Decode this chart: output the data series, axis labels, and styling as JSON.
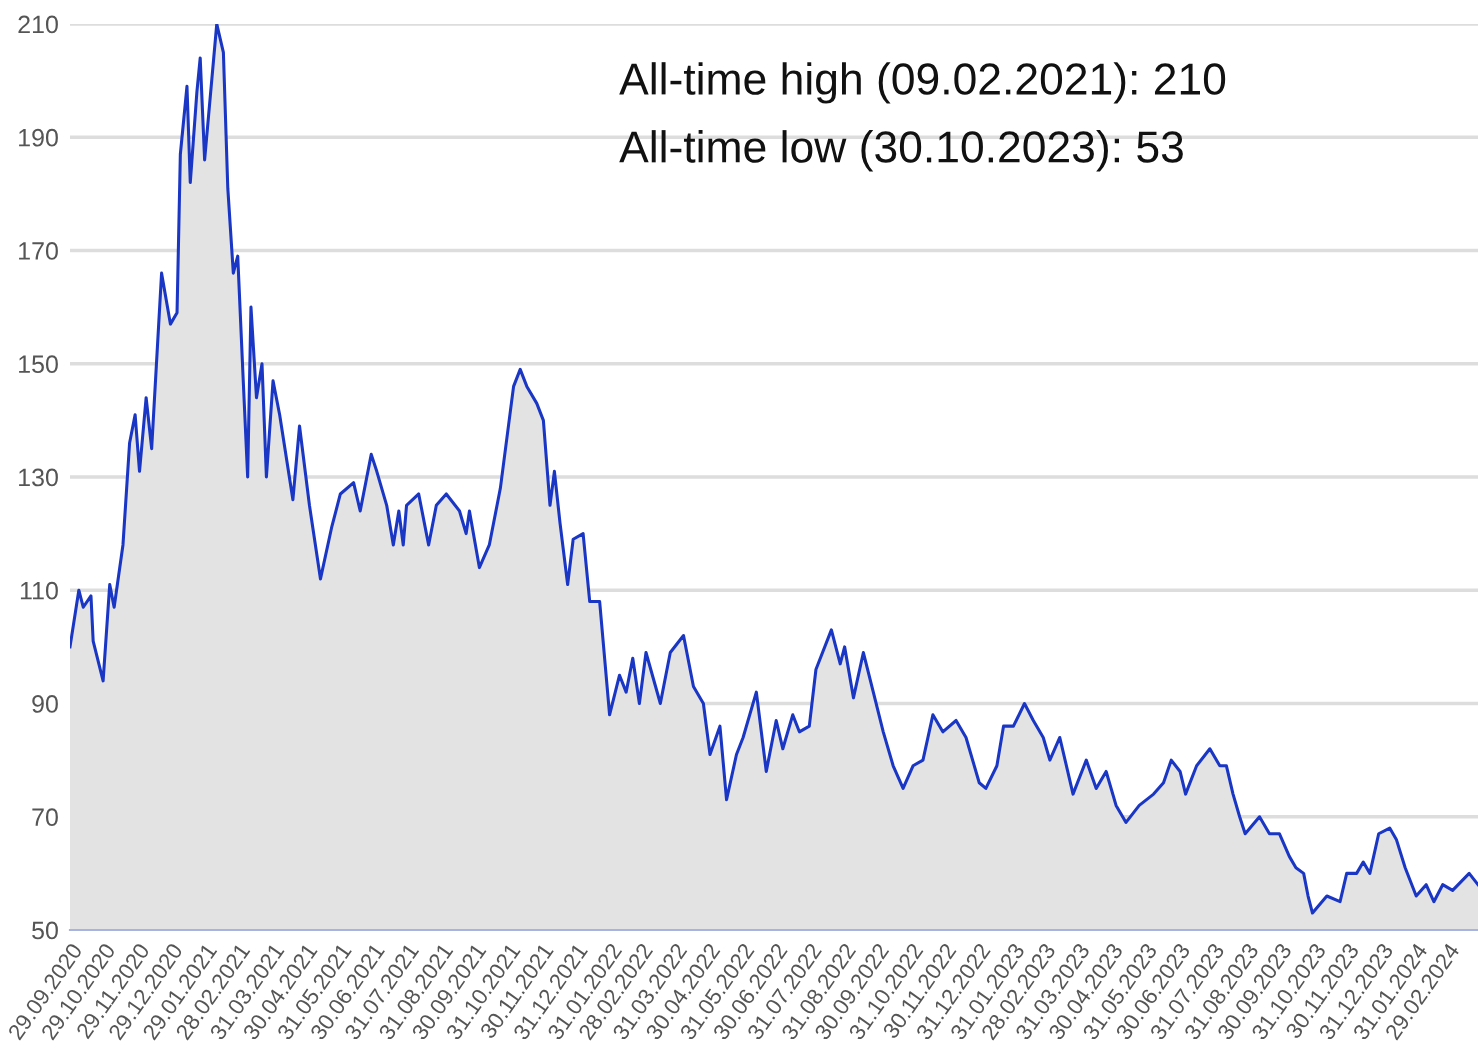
{
  "chart_data": {
    "type": "area",
    "series": [
      {
        "color": "#1a36c4",
        "x": [
          "2020-09-29",
          "2020-10-07",
          "2020-10-11",
          "2020-10-18",
          "2020-10-20",
          "2020-10-29",
          "2020-11-04",
          "2020-11-08",
          "2020-11-16",
          "2020-11-22",
          "2020-11-27",
          "2020-12-01",
          "2020-12-07",
          "2020-12-12",
          "2020-12-21",
          "2020-12-29",
          "2021-01-04",
          "2021-01-07",
          "2021-01-13",
          "2021-01-16",
          "2021-01-22",
          "2021-01-25",
          "2021-01-29",
          "2021-02-09",
          "2021-02-15",
          "2021-02-19",
          "2021-02-24",
          "2021-02-28",
          "2021-03-05",
          "2021-03-09",
          "2021-03-12",
          "2021-03-17",
          "2021-03-22",
          "2021-03-26",
          "2021-04-01",
          "2021-04-07",
          "2021-04-19",
          "2021-04-25",
          "2021-05-04",
          "2021-05-14",
          "2021-05-24",
          "2021-06-01",
          "2021-06-13",
          "2021-06-19",
          "2021-06-29",
          "2021-07-04",
          "2021-07-13",
          "2021-07-19",
          "2021-07-24",
          "2021-07-28",
          "2021-07-31",
          "2021-08-11",
          "2021-08-20",
          "2021-08-27",
          "2021-09-05",
          "2021-09-17",
          "2021-09-23",
          "2021-09-26",
          "2021-10-05",
          "2021-10-14",
          "2021-10-24",
          "2021-11-05",
          "2021-11-11",
          "2021-11-17",
          "2021-11-26",
          "2021-12-02",
          "2021-12-08",
          "2021-12-12",
          "2021-12-17",
          "2021-12-24",
          "2021-12-29",
          "2022-01-07",
          "2022-01-13",
          "2022-01-22",
          "2022-01-31",
          "2022-02-09",
          "2022-02-15",
          "2022-02-21",
          "2022-02-27",
          "2022-03-05",
          "2022-03-18",
          "2022-03-27",
          "2022-04-08",
          "2022-04-17",
          "2022-04-26",
          "2022-05-02",
          "2022-05-11",
          "2022-05-17",
          "2022-05-26",
          "2022-06-01",
          "2022-06-13",
          "2022-06-22",
          "2022-07-01",
          "2022-07-07",
          "2022-07-16",
          "2022-07-22",
          "2022-07-31",
          "2022-08-06",
          "2022-08-20",
          "2022-08-28",
          "2022-09-01",
          "2022-09-09",
          "2022-09-18",
          "2022-09-27",
          "2022-10-06",
          "2022-10-15",
          "2022-10-24",
          "2022-11-02",
          "2022-11-11",
          "2022-11-20",
          "2022-11-29",
          "2022-12-11",
          "2022-12-20",
          "2023-01-01",
          "2023-01-07",
          "2023-01-17",
          "2023-01-23",
          "2023-02-01",
          "2023-02-11",
          "2023-02-19",
          "2023-02-28",
          "2023-03-06",
          "2023-03-15",
          "2023-03-27",
          "2023-04-08",
          "2023-04-17",
          "2023-04-26",
          "2023-05-05",
          "2023-05-14",
          "2023-05-26",
          "2023-06-08",
          "2023-06-17",
          "2023-06-24",
          "2023-07-02",
          "2023-07-07",
          "2023-07-17",
          "2023-07-29",
          "2023-08-07",
          "2023-08-13",
          "2023-08-19",
          "2023-08-25",
          "2023-08-30",
          "2023-09-12",
          "2023-09-21",
          "2023-09-30",
          "2023-10-09",
          "2023-10-15",
          "2023-10-22",
          "2023-10-26",
          "2023-10-30",
          "2023-11-12",
          "2023-11-24",
          "2023-11-30",
          "2023-12-09",
          "2023-12-15",
          "2023-12-21",
          "2023-12-29",
          "2024-01-08",
          "2024-01-14",
          "2024-01-22",
          "2024-02-01",
          "2024-02-10",
          "2024-02-17",
          "2024-02-25",
          "2024-03-05",
          "2024-03-20",
          "2024-03-28"
        ],
        "values": [
          100,
          110,
          107,
          109,
          101,
          94,
          111,
          107,
          118,
          136,
          141,
          131,
          144,
          135,
          166,
          157,
          159,
          187,
          199,
          182,
          198,
          204,
          186,
          210,
          205,
          181,
          166,
          169,
          147,
          130,
          160,
          144,
          150,
          130,
          147,
          141,
          126,
          139,
          125,
          112,
          121,
          127,
          129,
          124,
          134,
          131,
          125,
          118,
          124,
          118,
          125,
          127,
          118,
          125,
          127,
          124,
          120,
          124,
          114,
          118,
          128,
          146,
          149,
          146,
          143,
          140,
          125,
          131,
          122,
          111,
          119,
          120,
          108,
          108,
          88,
          95,
          92,
          98,
          90,
          99,
          90,
          99,
          102,
          93,
          90,
          81,
          86,
          73,
          81,
          84,
          92,
          78,
          87,
          82,
          88,
          85,
          86,
          96,
          103,
          97,
          100,
          91,
          99,
          92,
          85,
          79,
          75,
          79,
          80,
          88,
          85,
          87,
          84,
          76,
          75,
          79,
          86,
          86,
          90,
          87,
          84,
          80,
          84,
          74,
          80,
          75,
          78,
          72,
          69,
          72,
          74,
          76,
          80,
          78,
          74,
          79,
          82,
          79,
          79,
          74,
          70,
          67,
          70,
          67,
          67,
          63,
          61,
          60,
          56,
          53,
          56,
          55,
          60,
          60,
          62,
          60,
          67,
          68,
          66,
          61,
          56,
          58,
          55,
          58,
          57,
          60,
          58
        ]
      }
    ],
    "xlim": [
      "2020-09-29",
      "2024-03-28"
    ],
    "xticks": [
      {
        "value": "2020-09-29",
        "label": "29.09.2020"
      },
      {
        "value": "2020-10-29",
        "label": "29.10.2020"
      },
      {
        "value": "2020-11-29",
        "label": "29.11.2020"
      },
      {
        "value": "2020-12-29",
        "label": "29.12.2020"
      },
      {
        "value": "2021-01-29",
        "label": "29.01.2021"
      },
      {
        "value": "2021-02-28",
        "label": "28.02.2021"
      },
      {
        "value": "2021-03-31",
        "label": "31.03.2021"
      },
      {
        "value": "2021-04-30",
        "label": "30.04.2021"
      },
      {
        "value": "2021-05-31",
        "label": "31.05.2021"
      },
      {
        "value": "2021-06-30",
        "label": "30.06.2021"
      },
      {
        "value": "2021-07-31",
        "label": "31.07.2021"
      },
      {
        "value": "2021-08-31",
        "label": "31.08.2021"
      },
      {
        "value": "2021-09-30",
        "label": "30.09.2021"
      },
      {
        "value": "2021-10-31",
        "label": "31.10.2021"
      },
      {
        "value": "2021-11-30",
        "label": "30.11.2021"
      },
      {
        "value": "2021-12-31",
        "label": "31.12.2021"
      },
      {
        "value": "2022-01-31",
        "label": "31.01.2022"
      },
      {
        "value": "2022-02-28",
        "label": "28.02.2022"
      },
      {
        "value": "2022-03-31",
        "label": "31.03.2022"
      },
      {
        "value": "2022-04-30",
        "label": "30.04.2022"
      },
      {
        "value": "2022-05-31",
        "label": "31.05.2022"
      },
      {
        "value": "2022-06-30",
        "label": "30.06.2022"
      },
      {
        "value": "2022-07-31",
        "label": "31.07.2022"
      },
      {
        "value": "2022-08-31",
        "label": "31.08.2022"
      },
      {
        "value": "2022-09-30",
        "label": "30.09.2022"
      },
      {
        "value": "2022-10-31",
        "label": "31.10.2022"
      },
      {
        "value": "2022-11-30",
        "label": "30.11.2022"
      },
      {
        "value": "2022-12-31",
        "label": "31.12.2022"
      },
      {
        "value": "2023-01-31",
        "label": "31.01.2023"
      },
      {
        "value": "2023-02-28",
        "label": "28.02.2023"
      },
      {
        "value": "2023-03-31",
        "label": "31.03.2023"
      },
      {
        "value": "2023-04-30",
        "label": "30.04.2023"
      },
      {
        "value": "2023-05-31",
        "label": "31.05.2023"
      },
      {
        "value": "2023-06-30",
        "label": "30.06.2023"
      },
      {
        "value": "2023-07-31",
        "label": "31.07.2023"
      },
      {
        "value": "2023-08-31",
        "label": "31.08.2023"
      },
      {
        "value": "2023-09-30",
        "label": "30.09.2023"
      },
      {
        "value": "2023-10-31",
        "label": "31.10.2023"
      },
      {
        "value": "2023-11-30",
        "label": "30.11.2023"
      },
      {
        "value": "2023-12-31",
        "label": "31.12.2023"
      },
      {
        "value": "2024-01-31",
        "label": "31.01.2024"
      },
      {
        "value": "2024-02-29",
        "label": "29.02.2024"
      }
    ],
    "ylim": [
      50,
      210
    ],
    "yticks": [
      50,
      70,
      90,
      110,
      130,
      150,
      170,
      190,
      210
    ],
    "grid": "y",
    "legend": false,
    "annotations": [
      "All-time high (09.02.2021): 210",
      "All-time low (30.10.2023): 53"
    ]
  }
}
